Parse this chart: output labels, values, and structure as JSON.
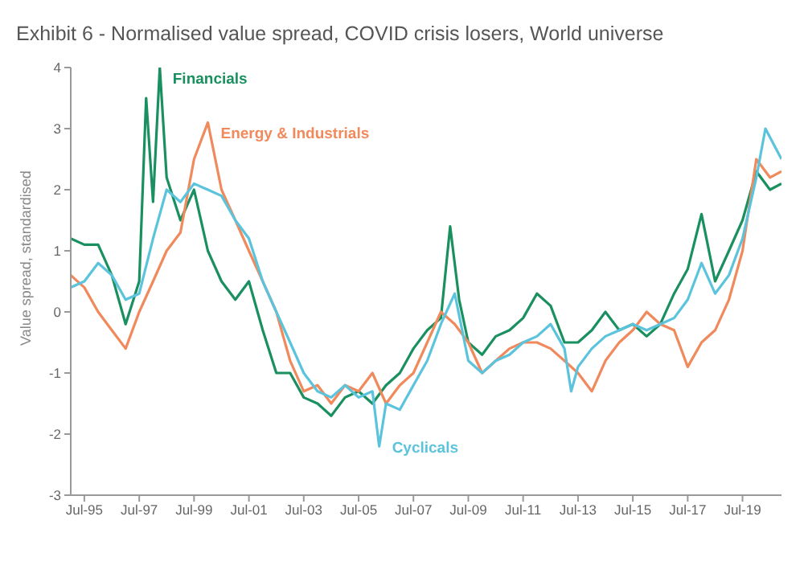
{
  "chart_data": {
    "type": "line",
    "title": "Exhibit 6 - Normalised value spread, COVID crisis losers, World universe",
    "ylabel": "Value spread, standardised",
    "xlim": [
      "1995-01",
      "2020-12"
    ],
    "xticks": [
      {
        "value": "1995-07",
        "label": "Jul-95"
      },
      {
        "value": "1997-07",
        "label": "Jul-97"
      },
      {
        "value": "1999-07",
        "label": "Jul-99"
      },
      {
        "value": "2001-07",
        "label": "Jul-01"
      },
      {
        "value": "2003-07",
        "label": "Jul-03"
      },
      {
        "value": "2005-07",
        "label": "Jul-05"
      },
      {
        "value": "2007-07",
        "label": "Jul-07"
      },
      {
        "value": "2009-07",
        "label": "Jul-09"
      },
      {
        "value": "2011-07",
        "label": "Jul-11"
      },
      {
        "value": "2013-07",
        "label": "Jul-13"
      },
      {
        "value": "2015-07",
        "label": "Jul-15"
      },
      {
        "value": "2017-07",
        "label": "Jul-17"
      },
      {
        "value": "2019-07",
        "label": "Jul-19"
      }
    ],
    "ylim": [
      -3,
      4
    ],
    "yticks": [
      -3,
      -2,
      -1,
      0,
      1,
      2,
      3,
      4
    ],
    "grid": false,
    "legend": false,
    "marker": "none",
    "line_style": "solid",
    "series": [
      {
        "name": "Financials",
        "color": "#1a9060",
        "x": [
          "1995-01",
          "1995-07",
          "1996-01",
          "1996-07",
          "1997-01",
          "1997-07",
          "1997-10",
          "1998-01",
          "1998-04",
          "1998-07",
          "1999-01",
          "1999-07",
          "2000-01",
          "2000-07",
          "2001-01",
          "2001-07",
          "2002-01",
          "2002-07",
          "2003-01",
          "2003-07",
          "2004-01",
          "2004-07",
          "2005-01",
          "2005-07",
          "2006-01",
          "2006-07",
          "2007-01",
          "2007-07",
          "2008-01",
          "2008-07",
          "2008-11",
          "2009-03",
          "2009-07",
          "2010-01",
          "2010-07",
          "2011-01",
          "2011-07",
          "2012-01",
          "2012-07",
          "2013-01",
          "2013-07",
          "2014-01",
          "2014-07",
          "2015-01",
          "2015-07",
          "2016-01",
          "2016-07",
          "2017-01",
          "2017-07",
          "2018-01",
          "2018-07",
          "2019-01",
          "2019-07",
          "2020-01",
          "2020-07",
          "2020-12"
        ],
        "values": [
          1.2,
          1.1,
          1.1,
          0.6,
          -0.2,
          0.5,
          3.5,
          1.8,
          4.0,
          2.2,
          1.5,
          2.0,
          1.0,
          0.5,
          0.2,
          0.5,
          -0.3,
          -1.0,
          -1.0,
          -1.4,
          -1.5,
          -1.7,
          -1.4,
          -1.3,
          -1.5,
          -1.2,
          -1.0,
          -0.6,
          -0.3,
          -0.1,
          1.4,
          0.2,
          -0.5,
          -0.7,
          -0.4,
          -0.3,
          -0.1,
          0.3,
          0.1,
          -0.5,
          -0.5,
          -0.3,
          0.0,
          -0.3,
          -0.2,
          -0.4,
          -0.2,
          0.3,
          0.7,
          1.6,
          0.5,
          1.0,
          1.5,
          2.3,
          2.0,
          2.1
        ]
      },
      {
        "name": "Energy & Industrials",
        "color": "#f08a5d",
        "x": [
          "1995-01",
          "1995-07",
          "1996-01",
          "1996-07",
          "1997-01",
          "1997-07",
          "1998-01",
          "1998-07",
          "1999-01",
          "1999-07",
          "1999-10",
          "2000-01",
          "2000-07",
          "2001-01",
          "2001-07",
          "2002-01",
          "2002-07",
          "2003-01",
          "2003-07",
          "2004-01",
          "2004-07",
          "2005-01",
          "2005-07",
          "2006-01",
          "2006-07",
          "2007-01",
          "2007-07",
          "2008-01",
          "2008-07",
          "2009-01",
          "2009-07",
          "2010-01",
          "2010-07",
          "2011-01",
          "2011-07",
          "2012-01",
          "2012-07",
          "2013-01",
          "2013-07",
          "2014-01",
          "2014-07",
          "2015-01",
          "2015-07",
          "2016-01",
          "2016-07",
          "2017-01",
          "2017-07",
          "2018-01",
          "2018-07",
          "2019-01",
          "2019-07",
          "2020-01",
          "2020-07",
          "2020-12"
        ],
        "values": [
          0.6,
          0.4,
          0.0,
          -0.3,
          -0.6,
          0.0,
          0.5,
          1.0,
          1.3,
          2.5,
          2.8,
          3.1,
          2.0,
          1.5,
          1.0,
          0.5,
          0.0,
          -0.8,
          -1.3,
          -1.2,
          -1.5,
          -1.2,
          -1.3,
          -1.0,
          -1.5,
          -1.2,
          -1.0,
          -0.5,
          0.0,
          -0.2,
          -0.5,
          -1.0,
          -0.8,
          -0.6,
          -0.5,
          -0.5,
          -0.6,
          -0.8,
          -1.0,
          -1.3,
          -0.8,
          -0.5,
          -0.3,
          0.0,
          -0.2,
          -0.3,
          -0.9,
          -0.5,
          -0.3,
          0.2,
          1.0,
          2.5,
          2.2,
          2.3
        ]
      },
      {
        "name": "Cyclicals",
        "color": "#5bc4dc",
        "x": [
          "1995-01",
          "1995-07",
          "1996-01",
          "1996-07",
          "1997-01",
          "1997-07",
          "1998-01",
          "1998-07",
          "1999-01",
          "1999-07",
          "2000-01",
          "2000-07",
          "2001-01",
          "2001-07",
          "2002-01",
          "2002-07",
          "2003-01",
          "2003-07",
          "2004-01",
          "2004-07",
          "2005-01",
          "2005-07",
          "2006-01",
          "2006-04",
          "2006-07",
          "2007-01",
          "2007-07",
          "2008-01",
          "2008-07",
          "2009-01",
          "2009-07",
          "2010-01",
          "2010-07",
          "2011-01",
          "2011-07",
          "2012-01",
          "2012-07",
          "2013-01",
          "2013-04",
          "2013-07",
          "2014-01",
          "2014-07",
          "2015-01",
          "2015-07",
          "2016-01",
          "2016-07",
          "2017-01",
          "2017-07",
          "2018-01",
          "2018-07",
          "2019-01",
          "2019-07",
          "2020-01",
          "2020-05",
          "2020-12"
        ],
        "values": [
          0.4,
          0.5,
          0.8,
          0.6,
          0.2,
          0.3,
          1.2,
          2.0,
          1.8,
          2.1,
          2.0,
          1.9,
          1.5,
          1.2,
          0.5,
          0.0,
          -0.5,
          -1.0,
          -1.3,
          -1.4,
          -1.2,
          -1.4,
          -1.3,
          -2.2,
          -1.5,
          -1.6,
          -1.2,
          -0.8,
          -0.2,
          0.3,
          -0.8,
          -1.0,
          -0.8,
          -0.7,
          -0.5,
          -0.4,
          -0.2,
          -0.6,
          -1.3,
          -0.9,
          -0.6,
          -0.4,
          -0.3,
          -0.2,
          -0.3,
          -0.2,
          -0.1,
          0.2,
          0.8,
          0.3,
          0.6,
          1.2,
          2.2,
          3.0,
          2.5
        ]
      }
    ]
  }
}
